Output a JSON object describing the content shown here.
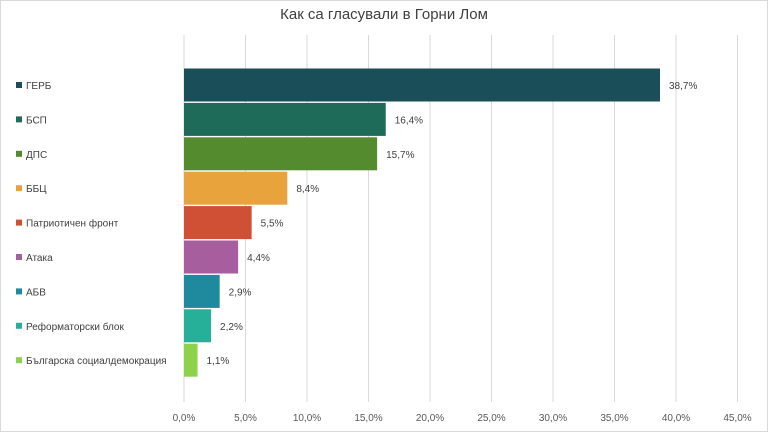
{
  "chart_data": {
    "type": "bar",
    "orientation": "horizontal",
    "title": "Как са гласували в Горни Лом",
    "xlabel": "",
    "ylabel": "",
    "categories": [
      "ГЕРБ",
      "БСП",
      "ДПС",
      "ББЦ",
      "Патриотичен фронт",
      "Атака",
      "АБВ",
      "Реформаторски блок",
      "Българска социалдемокрация"
    ],
    "values": [
      38.7,
      16.4,
      15.7,
      8.4,
      5.5,
      4.4,
      2.9,
      2.2,
      1.1
    ],
    "data_labels": [
      "38,7%",
      "16,4%",
      "15,7%",
      "8,4%",
      "5,5%",
      "4,4%",
      "2,9%",
      "2,2%",
      "1,1%"
    ],
    "colors": [
      "#1a4f5a",
      "#1e6b5a",
      "#558b2f",
      "#e8a33d",
      "#d05036",
      "#a65e9e",
      "#1f8a9e",
      "#26b09a",
      "#8ed14b"
    ],
    "xlim": [
      0,
      45
    ],
    "x_ticks": [
      0,
      5,
      10,
      15,
      20,
      25,
      30,
      35,
      40,
      45
    ],
    "x_tick_labels": [
      "0,0%",
      "5,0%",
      "10,0%",
      "15,0%",
      "20,0%",
      "25,0%",
      "30,0%",
      "35,0%",
      "40,0%",
      "45,0%"
    ],
    "grid": "vertical",
    "legend": "left"
  }
}
